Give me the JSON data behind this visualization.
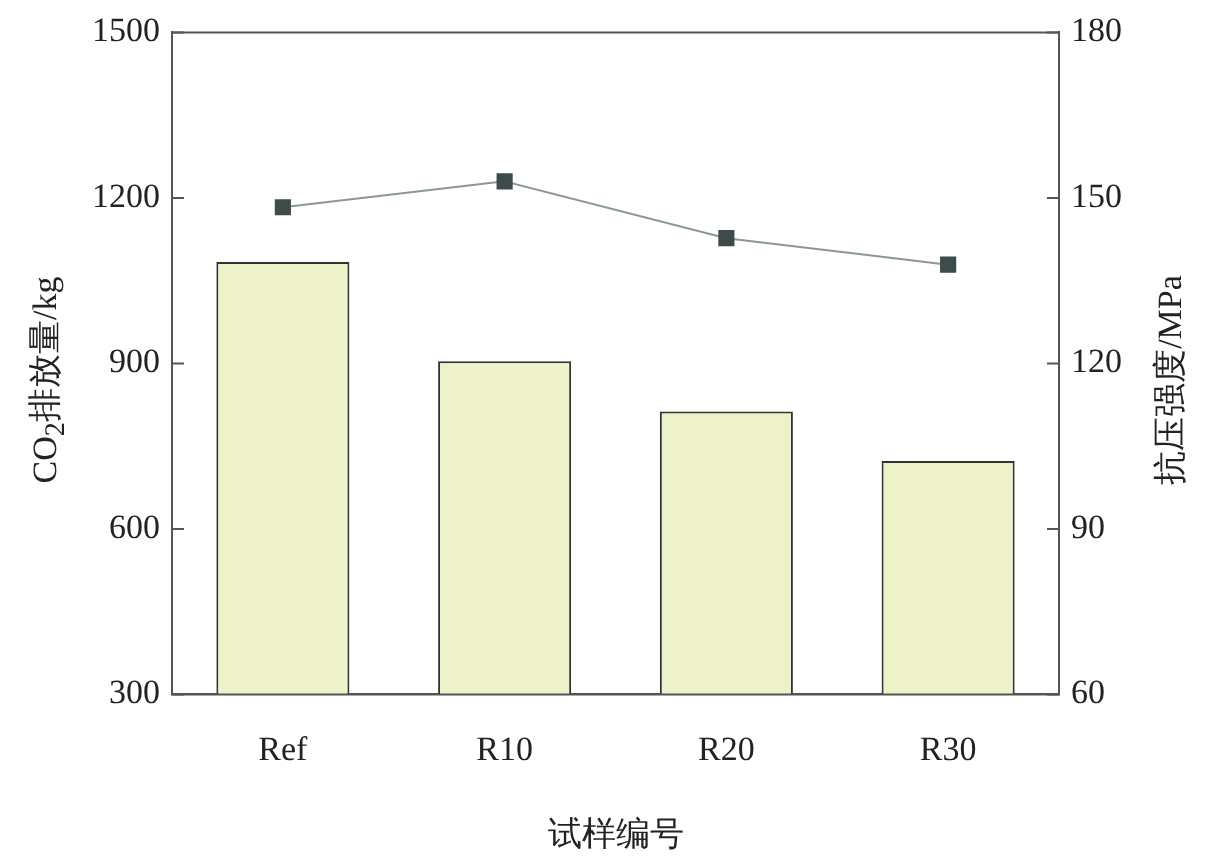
{
  "chart_data": {
    "type": "bar",
    "xlabel": "试样编号",
    "ylabel": "CO$_{2}$排放量/kg",
    "y2label": "抗压强度/MPa",
    "categories": [
      "Ref",
      "R10",
      "R20",
      "R30"
    ],
    "series": [
      {
        "color": "#eef2c9",
        "values": [
          1084,
          904,
          813,
          723
        ]
      },
      {
        "type": "line",
        "axis": "y2",
        "color": "#3d4b4b",
        "marker": "square",
        "values": [
          148.3,
          153,
          142.7,
          137.9
        ]
      }
    ],
    "ylim": [
      300,
      1500
    ],
    "yticks": [
      300,
      600,
      900,
      1200,
      1500
    ],
    "y2lim": [
      60,
      180
    ],
    "y2ticks": [
      60,
      90,
      120,
      150,
      180
    ],
    "grid": false,
    "legend": false
  }
}
